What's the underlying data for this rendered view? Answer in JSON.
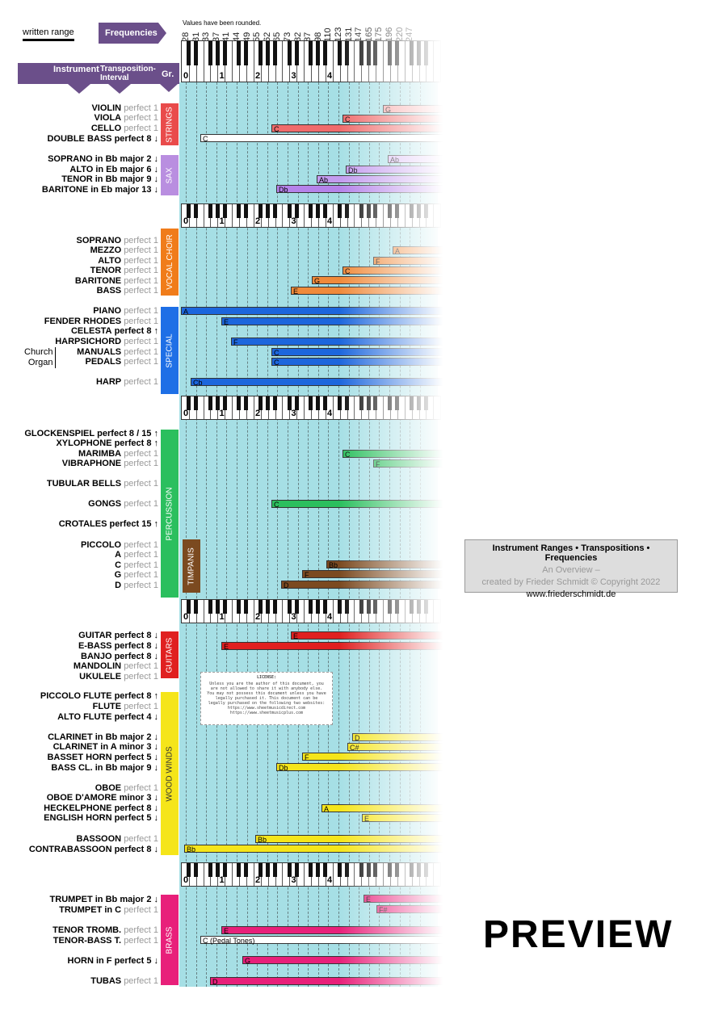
{
  "header": {
    "legend_label": "written range",
    "frequencies_button": "Frequencies",
    "values_note": "Values have been rounded.",
    "columns": {
      "instrument": "Instrument",
      "transposition": "Transposition-Interval",
      "group": "Gr."
    }
  },
  "frequencies": [
    "28",
    "31",
    "33",
    "37",
    "41",
    "44",
    "49",
    "55",
    "62",
    "65",
    "73",
    "82",
    "87",
    "98",
    "110",
    "123",
    "131",
    "147",
    "165",
    "175",
    "196",
    "220",
    "247"
  ],
  "octave_labels": [
    "0",
    "1",
    "2",
    "3",
    "4"
  ],
  "groups": [
    {
      "name": "STRINGS",
      "color": "#e94b4b"
    },
    {
      "name": "SAX",
      "color": "#b98ee0"
    },
    {
      "name": "VOCAL CHOIR",
      "color": "#f07c1a"
    },
    {
      "name": "SPECIAL",
      "color": "#1e6fe6"
    },
    {
      "name": "PERCUSSION",
      "color": "#2bbf5e"
    },
    {
      "name": "TIMPANIS",
      "color": "#7b4a20"
    },
    {
      "name": "GUITARS",
      "color": "#e02020"
    },
    {
      "name": "WOOD WINDS",
      "color": "#f5e51a"
    },
    {
      "name": "BRASS",
      "color": "#e8207a"
    }
  ],
  "instruments": [
    {
      "name": "VIOLIN",
      "interval": "perfect 1"
    },
    {
      "name": "VIOLA",
      "interval": "perfect 1"
    },
    {
      "name": "CELLO",
      "interval": "perfect 1"
    },
    {
      "name": "DOUBLE BASS",
      "interval": "perfect 8 ↓"
    },
    {
      "name": "SOPRANO in Bb",
      "interval": "major 2 ↓"
    },
    {
      "name": "ALTO in Eb",
      "interval": "major 6 ↓"
    },
    {
      "name": "TENOR in Bb",
      "interval": "major 9 ↓"
    },
    {
      "name": "BARITONE in Eb",
      "interval": "major 13 ↓"
    },
    {
      "name": "SOPRANO",
      "interval": "perfect 1"
    },
    {
      "name": "MEZZO",
      "interval": "perfect 1"
    },
    {
      "name": "ALTO",
      "interval": "perfect 1"
    },
    {
      "name": "TENOR",
      "interval": "perfect 1"
    },
    {
      "name": "BARITONE",
      "interval": "perfect 1"
    },
    {
      "name": "BASS",
      "interval": "perfect 1"
    },
    {
      "name": "PIANO",
      "interval": "perfect 1"
    },
    {
      "name": "FENDER RHODES",
      "interval": "perfect 1"
    },
    {
      "name": "CELESTA",
      "interval": "perfect 8 ↑"
    },
    {
      "name": "HARPSICHORD",
      "interval": "perfect 1"
    },
    {
      "name": "MANUALS",
      "interval": "perfect 1"
    },
    {
      "name": "PEDALS",
      "interval": "perfect 1"
    },
    {
      "name": "HARP",
      "interval": "perfect 1"
    },
    {
      "name": "GLOCKENSPIEL",
      "interval": "perfect 8 / 15 ↑"
    },
    {
      "name": "XYLOPHONE",
      "interval": "perfect 8 ↑"
    },
    {
      "name": "MARIMBA",
      "interval": "perfect 1"
    },
    {
      "name": "VIBRAPHONE",
      "interval": "perfect 1"
    },
    {
      "name": "TUBULAR BELLS",
      "interval": "perfect 1"
    },
    {
      "name": "GONGS",
      "interval": "perfect 1"
    },
    {
      "name": "CROTALES",
      "interval": "perfect 15 ↑"
    },
    {
      "name": "PICCOLO",
      "interval": "perfect 1"
    },
    {
      "name": "A",
      "interval": "perfect 1"
    },
    {
      "name": "C",
      "interval": "perfect 1"
    },
    {
      "name": "G",
      "interval": "perfect 1"
    },
    {
      "name": "D",
      "interval": "perfect 1"
    },
    {
      "name": "GUITAR",
      "interval": "perfect 8 ↓"
    },
    {
      "name": "E-BASS",
      "interval": "perfect 8 ↓"
    },
    {
      "name": "BANJO",
      "interval": "perfect 8 ↓"
    },
    {
      "name": "MANDOLIN",
      "interval": "perfect 1"
    },
    {
      "name": "UKULELE",
      "interval": "perfect 1"
    },
    {
      "name": "PICCOLO FLUTE",
      "interval": "perfect 8 ↑"
    },
    {
      "name": "FLUTE",
      "interval": "perfect 1"
    },
    {
      "name": "ALTO FLUTE",
      "interval": "perfect 4 ↓"
    },
    {
      "name": "CLARINET in Bb",
      "interval": "major 2 ↓"
    },
    {
      "name": "CLARINET in A",
      "interval": "minor 3 ↓"
    },
    {
      "name": "BASSET HORN",
      "interval": "perfect 5 ↓"
    },
    {
      "name": "BASS CL. in Bb",
      "interval": "major 9 ↓"
    },
    {
      "name": "OBOE",
      "interval": "perfect 1"
    },
    {
      "name": "OBOE D'AMORE",
      "interval": "minor 3 ↓"
    },
    {
      "name": "HECKELPHONE",
      "interval": "perfect 8 ↓"
    },
    {
      "name": "ENGLISH HORN",
      "interval": "perfect 5 ↓"
    },
    {
      "name": "BASSOON",
      "interval": "perfect 1"
    },
    {
      "name": "CONTRABASSOON",
      "interval": "perfect 8 ↓"
    },
    {
      "name": "TRUMPET in Bb",
      "interval": "major 2 ↓"
    },
    {
      "name": "TRUMPET in C",
      "interval": "perfect 1"
    },
    {
      "name": "TENOR TROMB.",
      "interval": "perfect 1"
    },
    {
      "name": "TENOR-BASS T.",
      "interval": "perfect 1"
    },
    {
      "name": "HORN in F",
      "interval": "perfect 5 ↓"
    },
    {
      "name": "TUBAS",
      "interval": "perfect 1"
    }
  ],
  "organ_label": {
    "line1": "Church",
    "line2": "Organ"
  },
  "bars": [
    {
      "note": "G",
      "color": "#f6a0a0"
    },
    {
      "note": "C",
      "color": "#ef6b6b"
    },
    {
      "note": "C",
      "color": "#ef6b6b"
    },
    {
      "note": "C",
      "color": "#ffffff"
    },
    {
      "note": "Ab",
      "color": "#d9b8f5"
    },
    {
      "note": "Db",
      "color": "#c39bef"
    },
    {
      "note": "Ab",
      "color": "#c39bef"
    },
    {
      "note": "Db",
      "color": "#b582ea"
    },
    {
      "note": "A",
      "color": "#1c66dd"
    },
    {
      "note": "E",
      "color": "#1c66dd"
    },
    {
      "note": "F",
      "color": "#1c66dd"
    },
    {
      "note": "C",
      "color": "#1c66dd"
    },
    {
      "note": "C",
      "color": "#1c66dd"
    },
    {
      "note": "Cb",
      "color": "#1c66dd"
    },
    {
      "note": "C",
      "color": "#2bbf5e"
    },
    {
      "note": "F",
      "color": "#2bbf5e"
    },
    {
      "note": "C",
      "color": "#2bbf5e"
    },
    {
      "note": "E",
      "color": "#f08a3a"
    },
    {
      "note": "G",
      "color": "#f08a3a"
    },
    {
      "note": "C",
      "color": "#f08a3a"
    },
    {
      "note": "F",
      "color": "#f08a3a"
    },
    {
      "note": "A",
      "color": "#f08a3a"
    },
    {
      "note": "Bb",
      "color": "#7b4a20"
    },
    {
      "note": "F",
      "color": "#7b4a20"
    },
    {
      "note": "D",
      "color": "#7b4a20"
    },
    {
      "note": "E",
      "color": "#e02020"
    },
    {
      "note": "E",
      "color": "#e02020"
    },
    {
      "note": "D",
      "color": "#f5e51a"
    },
    {
      "note": "C#",
      "color": "#f5e51a"
    },
    {
      "note": "F",
      "color": "#f5e51a"
    },
    {
      "note": "Db",
      "color": "#f5e51a"
    },
    {
      "note": "A",
      "color": "#f5e51a"
    },
    {
      "note": "E",
      "color": "#f5e51a"
    },
    {
      "note": "Bb",
      "color": "#f5e51a"
    },
    {
      "note": "Bb",
      "color": "#f5e51a"
    },
    {
      "note": "E",
      "color": "#e8207a"
    },
    {
      "note": "F#",
      "color": "#e8207a"
    },
    {
      "note": "E",
      "color": "#e8207a"
    },
    {
      "note": "C (Pedal Tones)",
      "color": "#ffffff"
    },
    {
      "note": "G",
      "color": "#e8207a"
    },
    {
      "note": "D",
      "color": "#e8207a"
    }
  ],
  "info_box": {
    "title": "Instrument Ranges • Transpositions • Frequencies",
    "subtitle": "An Overview –",
    "credit": "created by Frieder Schmidt © Copyright 2022",
    "url": "www.friederschmidt.de"
  },
  "license": {
    "title": "LICENSE:",
    "text": "Unless you are the author of this document, you are not allowed to share it with anybody else. You may not possess this document unless you have legally purchased it. This document can be legally purchased on the following two websites: https://www.sheetmusicdirect.com https://www.sheetmusicplus.com"
  },
  "watermark": "PREVIEW"
}
